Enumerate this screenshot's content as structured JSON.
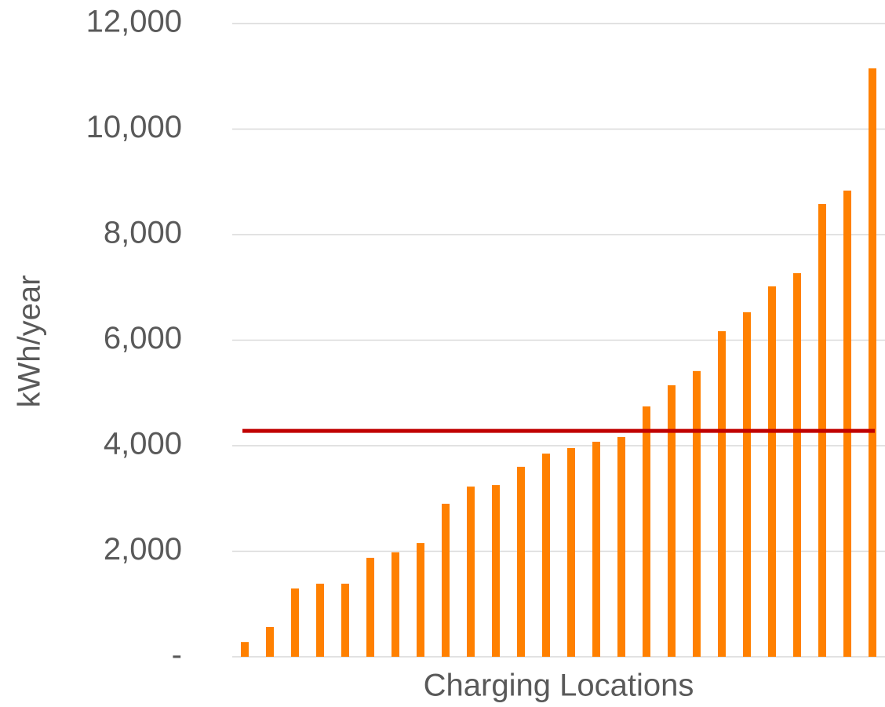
{
  "chart_data": {
    "type": "bar",
    "x_label": "Charging Locations",
    "y_label": "kWh/year",
    "categories": [
      null,
      null,
      null,
      null,
      null,
      null,
      null,
      null,
      null,
      null,
      null,
      null,
      null,
      null,
      null,
      null,
      null,
      null,
      null,
      null,
      null,
      null,
      null,
      null,
      null,
      null
    ],
    "values": [
      280,
      565,
      1295,
      1385,
      1385,
      1875,
      1980,
      2155,
      2900,
      3225,
      3255,
      3600,
      3850,
      3955,
      4075,
      4165,
      4745,
      5145,
      5415,
      6170,
      6530,
      7020,
      7270,
      8580,
      8835,
      11150
    ],
    "color": "#ff8000",
    "reference_line": {
      "value": 4280,
      "color": "#c00000"
    },
    "ylim": [
      0,
      12000
    ],
    "yticks": [
      {
        "value": 0,
        "label": "-"
      },
      {
        "value": 2000,
        "label": "2,000"
      },
      {
        "value": 4000,
        "label": "4,000"
      },
      {
        "value": 6000,
        "label": "6,000"
      },
      {
        "value": 8000,
        "label": "8,000"
      },
      {
        "value": 10000,
        "label": "10,000"
      },
      {
        "value": 12000,
        "label": "12,000"
      }
    ],
    "grid": true
  }
}
